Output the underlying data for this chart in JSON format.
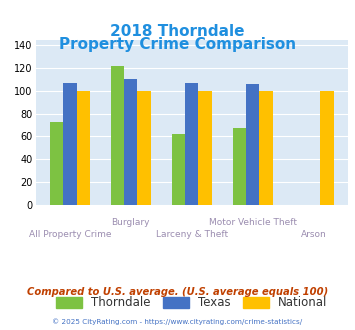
{
  "title_line1": "2018 Thorndale",
  "title_line2": "Property Crime Comparison",
  "thorndale": [
    73,
    122,
    62,
    67,
    0
  ],
  "texas": [
    107,
    110,
    107,
    106,
    0
  ],
  "national": [
    100,
    100,
    100,
    100,
    100
  ],
  "thorndale_color": "#7dc242",
  "texas_color": "#4472c4",
  "national_color": "#ffc000",
  "bar_width": 0.22,
  "ylim": [
    0,
    145
  ],
  "yticks": [
    0,
    20,
    40,
    60,
    80,
    100,
    120,
    140
  ],
  "title_color": "#1f8fdf",
  "bg_color": "#dce9f5",
  "grid_color": "#ffffff",
  "footer_text": "Compared to U.S. average. (U.S. average equals 100)",
  "copyright_text": "© 2025 CityRating.com - https://www.cityrating.com/crime-statistics/",
  "legend_labels": [
    "Thorndale",
    "Texas",
    "National"
  ],
  "xlabel_color": "#9b8db0",
  "top_labels": [
    "",
    "Burglary",
    "",
    "Motor Vehicle Theft",
    ""
  ],
  "bottom_labels": [
    "All Property Crime",
    "",
    "Larceny & Theft",
    "",
    "Arson"
  ],
  "footer_color": "#c04000",
  "copyright_color": "#4472c4"
}
